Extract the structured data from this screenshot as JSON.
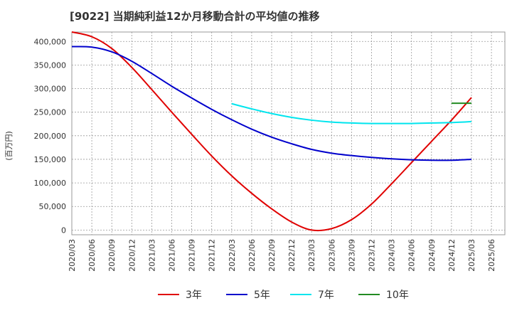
{
  "title": "[9022]  当期純利益12か月移動合計の平均値の推移",
  "chart_data": {
    "type": "line",
    "title": "[9022]  当期純利益12か月移動合計の平均値の推移",
    "ylabel": "(百万円)",
    "xlabel": "",
    "ylim": [
      -10000,
      420000
    ],
    "yticks": [
      0,
      50000,
      100000,
      150000,
      200000,
      250000,
      300000,
      350000,
      400000
    ],
    "ytick_labels": [
      "0",
      "50,000",
      "100,000",
      "150,000",
      "200,000",
      "250,000",
      "300,000",
      "350,000",
      "400,000"
    ],
    "xticks": [
      "2020/03",
      "2020/06",
      "2020/09",
      "2020/12",
      "2021/03",
      "2021/06",
      "2021/09",
      "2021/12",
      "2022/03",
      "2022/06",
      "2022/09",
      "2022/12",
      "2023/03",
      "2023/06",
      "2023/09",
      "2023/12",
      "2024/03",
      "2024/06",
      "2024/09",
      "2024/12",
      "2025/03",
      "2025/06"
    ],
    "grid": true,
    "legend_position": "bottom",
    "series": [
      {
        "name": "3年",
        "color": "#e00000",
        "x": [
          "2020/03",
          "2020/06",
          "2020/09",
          "2020/12",
          "2021/03",
          "2021/06",
          "2021/09",
          "2021/12",
          "2022/03",
          "2022/06",
          "2022/09",
          "2022/12",
          "2023/03",
          "2023/06",
          "2023/09",
          "2023/12",
          "2024/03",
          "2024/06",
          "2024/09",
          "2024/12",
          "2025/03"
        ],
        "values": [
          420000,
          410000,
          385000,
          345000,
          298000,
          250000,
          203000,
          157000,
          115000,
          78000,
          45000,
          17000,
          0,
          3000,
          22000,
          55000,
          98000,
          143000,
          188000,
          233000,
          281000
        ]
      },
      {
        "name": "5年",
        "color": "#0000cc",
        "x": [
          "2020/03",
          "2020/06",
          "2020/09",
          "2020/12",
          "2021/03",
          "2021/06",
          "2021/09",
          "2021/12",
          "2022/03",
          "2022/06",
          "2022/09",
          "2022/12",
          "2023/03",
          "2023/06",
          "2023/09",
          "2023/12",
          "2024/03",
          "2024/06",
          "2024/09",
          "2024/12",
          "2025/03"
        ],
        "values": [
          389000,
          388000,
          378000,
          358000,
          332000,
          305000,
          280000,
          256000,
          234000,
          214000,
          197000,
          183000,
          171000,
          163000,
          158000,
          154000,
          151000,
          149000,
          148000,
          148000,
          150000
        ]
      },
      {
        "name": "7年",
        "color": "#00e5ee",
        "x": [
          "2022/03",
          "2022/06",
          "2022/09",
          "2022/12",
          "2023/03",
          "2023/06",
          "2023/09",
          "2023/12",
          "2024/03",
          "2024/06",
          "2024/09",
          "2024/12",
          "2025/03"
        ],
        "values": [
          268000,
          257000,
          247000,
          239000,
          233000,
          229000,
          227000,
          226000,
          226000,
          226000,
          227000,
          228000,
          230000
        ]
      },
      {
        "name": "10年",
        "color": "#228b22",
        "x": [
          "2024/12",
          "2025/03"
        ],
        "values": [
          269000,
          269000
        ]
      }
    ]
  }
}
